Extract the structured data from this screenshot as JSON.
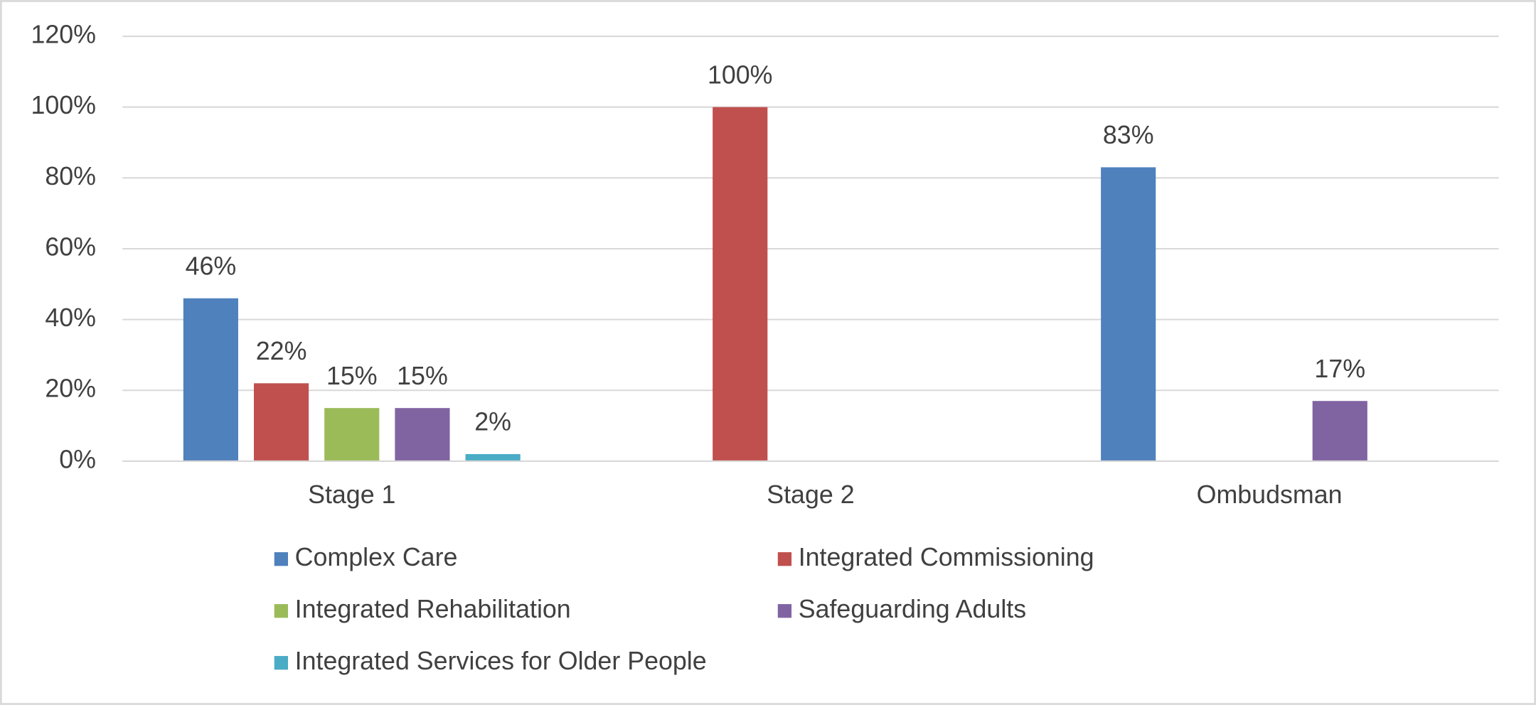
{
  "chart_data": {
    "type": "bar",
    "categories": [
      "Stage 1",
      "Stage 2",
      "Ombudsman"
    ],
    "series": [
      {
        "name": "Complex Care",
        "color": "#4f81bd",
        "values": [
          46,
          null,
          83
        ],
        "value_labels": [
          "46%",
          null,
          "83%"
        ]
      },
      {
        "name": "Integrated Commissioning",
        "color": "#c0504d",
        "values": [
          22,
          100,
          null
        ],
        "value_labels": [
          "22%",
          "100%",
          null
        ]
      },
      {
        "name": "Integrated Rehabilitation",
        "color": "#9bbb59",
        "values": [
          15,
          null,
          null
        ],
        "value_labels": [
          "15%",
          null,
          null
        ]
      },
      {
        "name": "Safeguarding Adults",
        "color": "#8064a2",
        "values": [
          15,
          null,
          17
        ],
        "value_labels": [
          "15%",
          null,
          "17%"
        ]
      },
      {
        "name": "Integrated Services for Older People",
        "color": "#4bacc6",
        "values": [
          2,
          null,
          null
        ],
        "value_labels": [
          "2%",
          null,
          null
        ]
      }
    ],
    "ylim": [
      0,
      120
    ],
    "yticks": [
      {
        "value": 0,
        "label": "0%"
      },
      {
        "value": 20,
        "label": "20%"
      },
      {
        "value": 40,
        "label": "40%"
      },
      {
        "value": 60,
        "label": "60%"
      },
      {
        "value": 80,
        "label": "80%"
      },
      {
        "value": 100,
        "label": "100%"
      },
      {
        "value": 120,
        "label": "120%"
      }
    ],
    "grid": true,
    "legend": "bottom"
  }
}
